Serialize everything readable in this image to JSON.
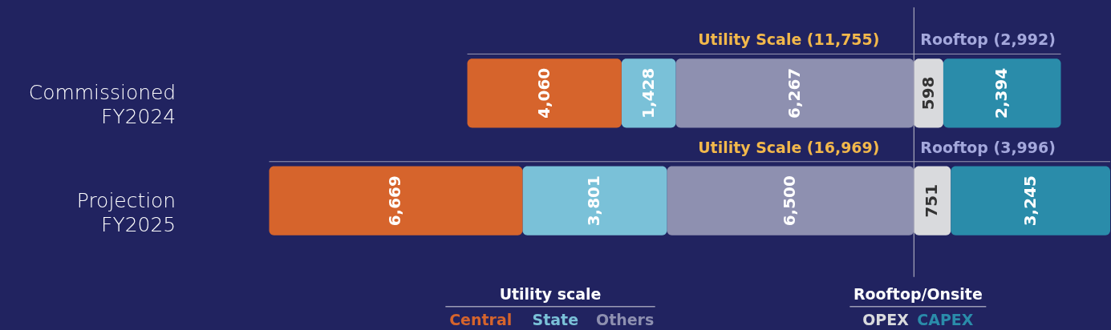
{
  "chart_data": [
    {
      "type": "bar",
      "orientation": "horizontal",
      "stacked": true,
      "categories": [
        "Commissioned\nFY2024",
        "Projection\nFY2025"
      ],
      "series": [
        {
          "name": "Others",
          "color": "#8e90b0",
          "values": [
            6267,
            6500
          ],
          "value_labels": [
            "6,267",
            "6,500"
          ]
        },
        {
          "name": "State",
          "color": "#7ac1d8",
          "values": [
            1428,
            3801
          ],
          "value_labels": [
            "1,428",
            "3,801"
          ]
        },
        {
          "name": "Central",
          "color": "#d6642c",
          "values": [
            4060,
            6669
          ],
          "value_labels": [
            "4,060",
            "6,669"
          ]
        }
      ],
      "xlim": [
        16970,
        0
      ],
      "annotations": [
        "Utility Scale (11,755)",
        "Utility Scale (16,969)"
      ],
      "legend": "bottom",
      "legend_title": "Utility scale",
      "tick_labels": "y"
    },
    {
      "type": "bar",
      "orientation": "horizontal",
      "stacked": true,
      "categories": [
        null,
        null
      ],
      "series": [
        {
          "name": "OPEX",
          "color": "#d9dadd",
          "values": [
            598,
            751
          ],
          "value_labels": [
            "598",
            "751"
          ]
        },
        {
          "name": "CAPEX",
          "color": "#2a8caa",
          "values": [
            2394,
            3245
          ],
          "value_labels": [
            "2,394",
            "3,245"
          ]
        }
      ],
      "xlim": [
        0,
        3996
      ],
      "ref_lines": [
        {
          "axis": "x",
          "value": 0,
          "color": "#a9a9bb"
        }
      ],
      "annotations": [
        "Rooftop (2,992)",
        "Rooftop (3,996)"
      ],
      "legend": "bottom",
      "legend_title": "Rooftop/Onsite",
      "tick_labels": false
    }
  ]
}
